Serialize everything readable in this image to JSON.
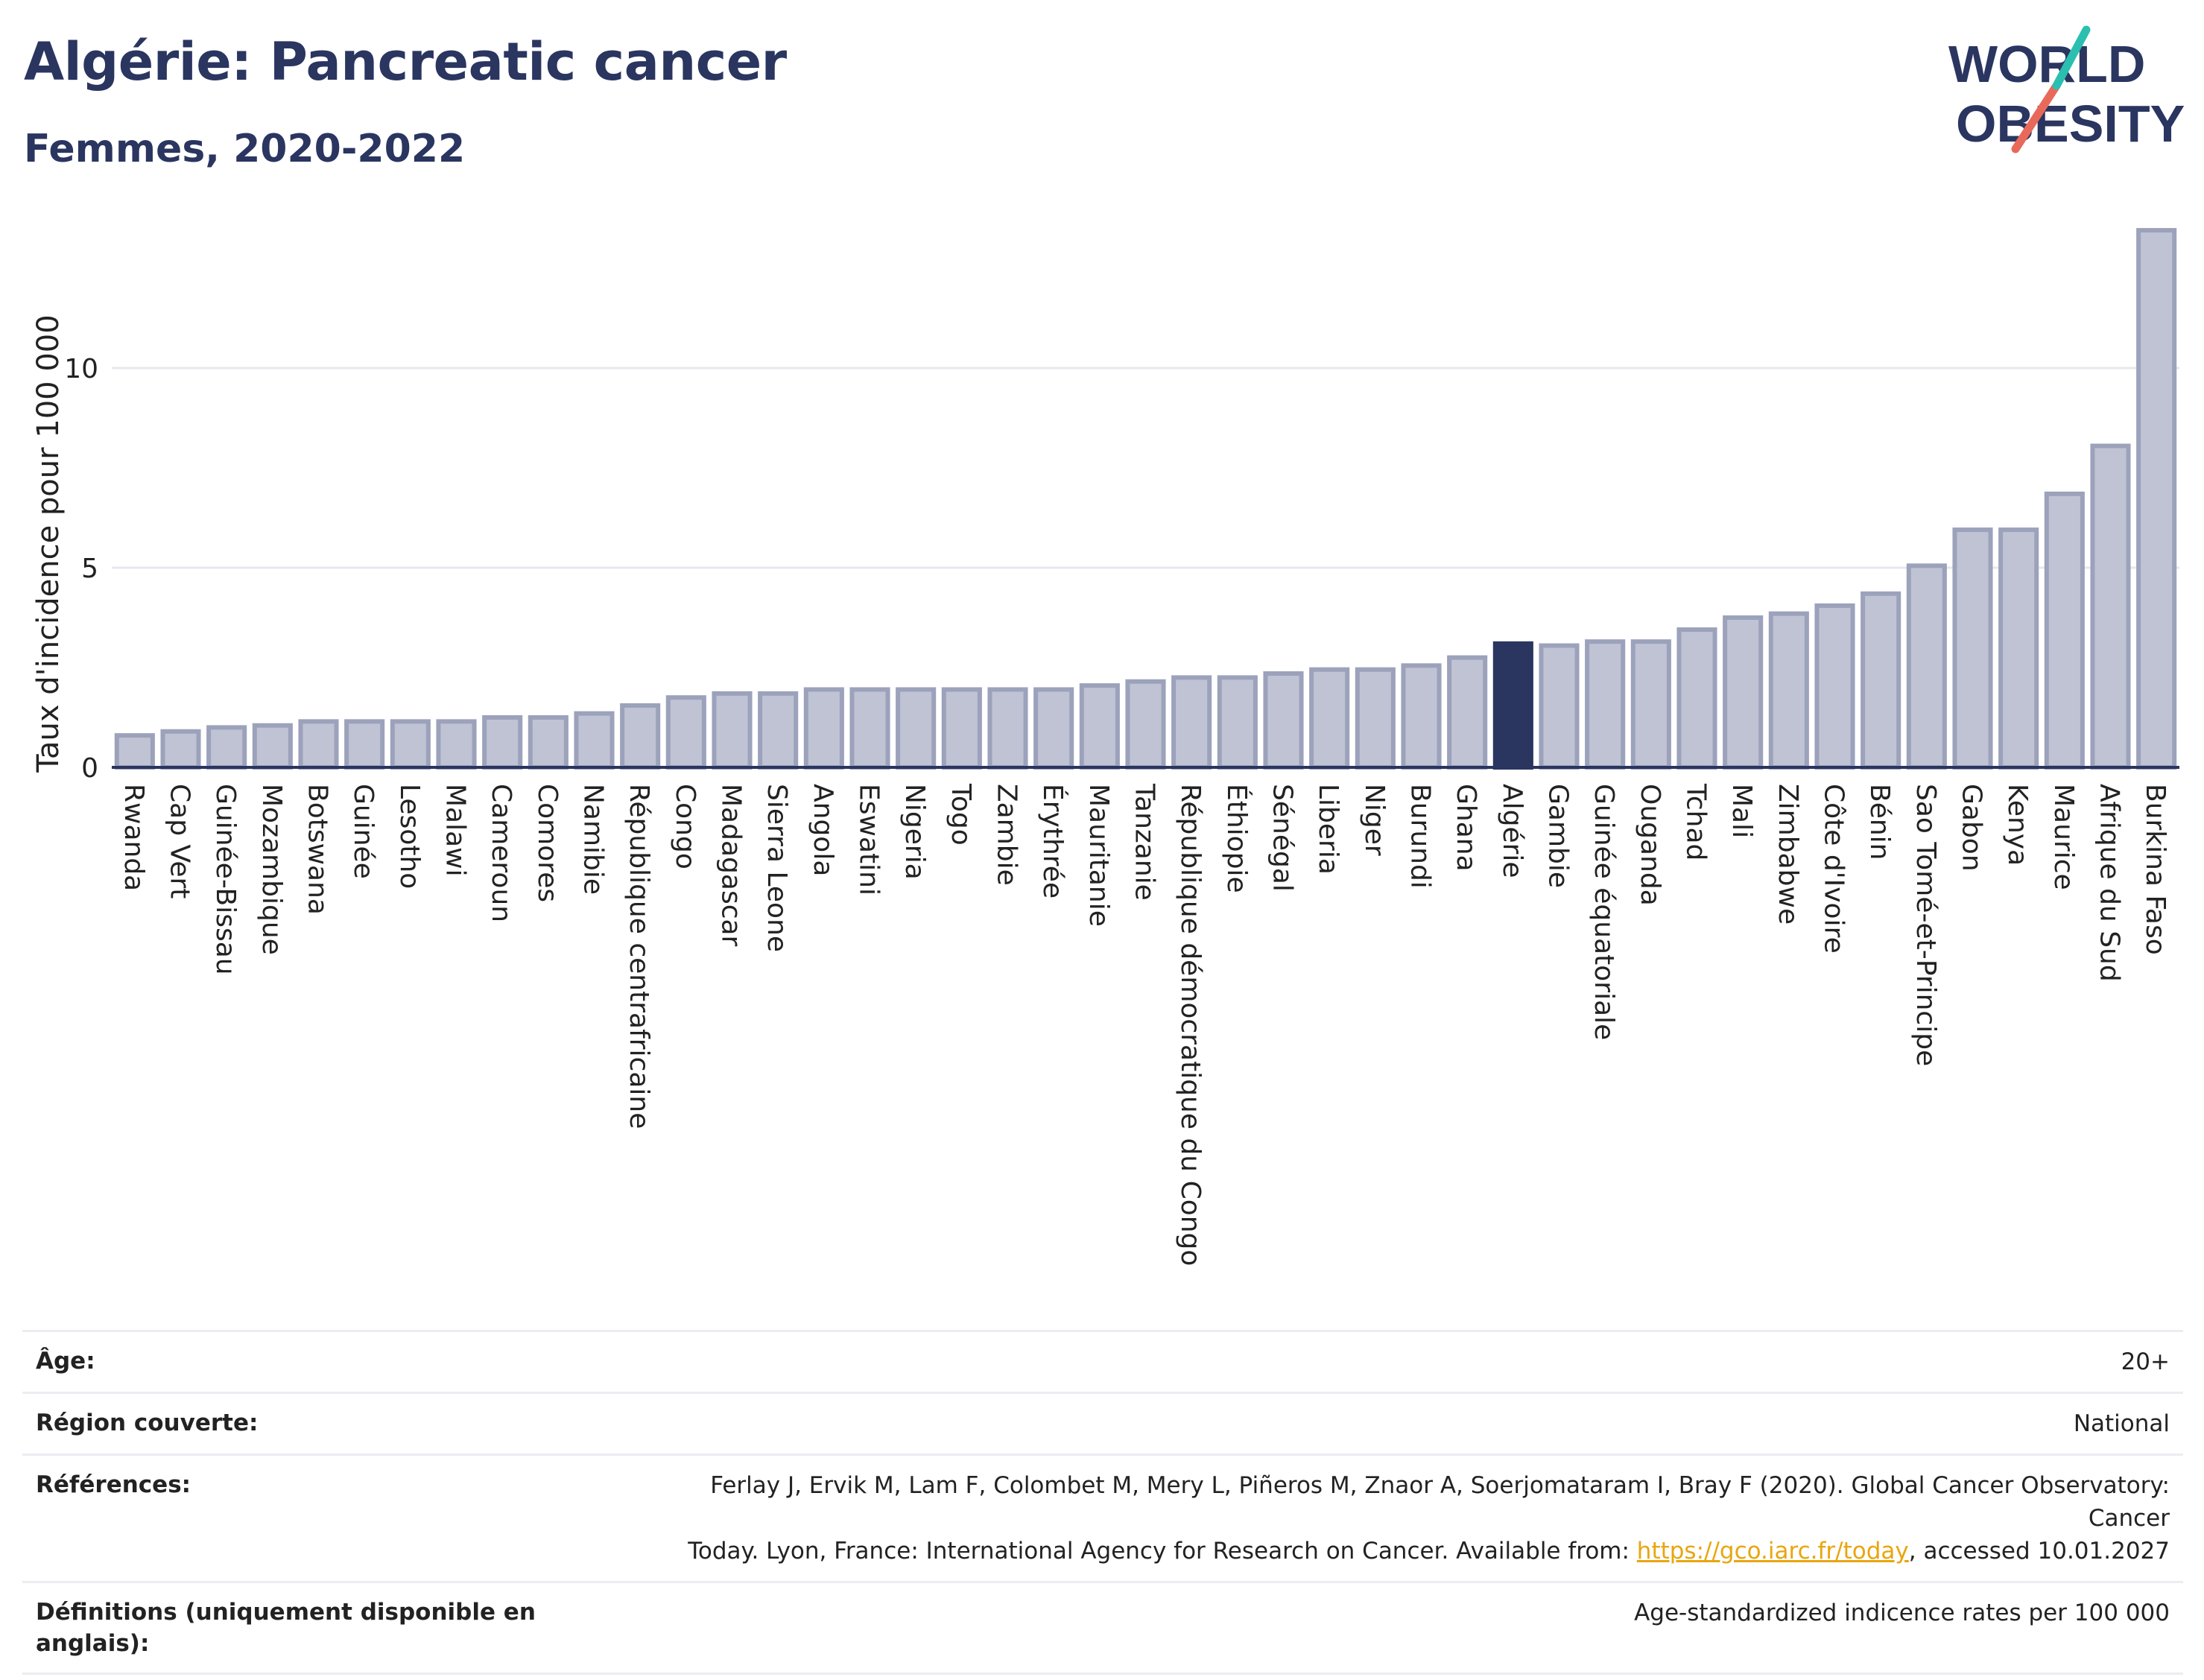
{
  "header": {
    "title": "Algérie: Pancreatic cancer",
    "subtitle": "Femmes, 2020-2022"
  },
  "logo": {
    "line1": "WORLD",
    "line2": "OBESITY"
  },
  "colors": {
    "bar_fill": "#bfc3d3",
    "bar_stroke": "#9ca2bb",
    "highlight": "#2a3560",
    "title": "#2a3560",
    "grid": "#e6e8ee",
    "axis": "#2a3560",
    "link": "#e8a60f",
    "logo_teal": "#2bbfb0",
    "logo_red": "#e8695a"
  },
  "chart_data": {
    "type": "bar",
    "ylabel": "Taux d'incidence pour 100 000",
    "ylim": [
      0,
      13.5
    ],
    "yticks": [
      0,
      5,
      10
    ],
    "grid": true,
    "highlight": "Algérie",
    "categories": [
      "Rwanda",
      "Cap Vert",
      "Guinée-Bissau",
      "Mozambique",
      "Botswana",
      "Guinée",
      "Lesotho",
      "Malawi",
      "Cameroun",
      "Comores",
      "Namibie",
      "République centrafricaine",
      "Congo",
      "Madagascar",
      "Sierra Leone",
      "Angola",
      "Eswatini",
      "Nigeria",
      "Togo",
      "Zambie",
      "Érythrée",
      "Mauritanie",
      "Tanzanie",
      "République démocratique du Congo",
      "Éthiopie",
      "Sénégal",
      "Liberia",
      "Niger",
      "Burundi",
      "Ghana",
      "Algérie",
      "Gambie",
      "Guinée équatoriale",
      "Ouganda",
      "Tchad",
      "Mali",
      "Zimbabwe",
      "Côte d'Ivoire",
      "Bénin",
      "Sao Tomé-et-Principe",
      "Gabon",
      "Kenya",
      "Maurice",
      "Afrique du Sud",
      "Burkina Faso"
    ],
    "values": [
      0.8,
      0.9,
      1.0,
      1.05,
      1.15,
      1.15,
      1.15,
      1.15,
      1.25,
      1.25,
      1.35,
      1.55,
      1.75,
      1.85,
      1.85,
      1.95,
      1.95,
      1.95,
      1.95,
      1.95,
      1.95,
      2.05,
      2.15,
      2.25,
      2.25,
      2.35,
      2.45,
      2.45,
      2.55,
      2.75,
      3.1,
      3.05,
      3.15,
      3.15,
      3.45,
      3.75,
      3.85,
      4.05,
      4.35,
      5.05,
      5.95,
      5.95,
      6.85,
      8.05,
      13.45
    ]
  },
  "info": {
    "age_label": "Âge:",
    "age_value": "20+",
    "region_label": "Région couverte:",
    "region_value": "National",
    "refs_label": "Références:",
    "refs_line1": "Ferlay J, Ervik M, Lam F, Colombet M, Mery L, Piñeros M, Znaor A, Soerjomataram I, Bray F (2020). Global Cancer Observatory: Cancer",
    "refs_line2_pre": "Today. Lyon, France: International Agency for Research on Cancer. Available from: ",
    "refs_link": "https://gco.iarc.fr/today",
    "refs_line2_post": ", accessed 10.01.2027",
    "defs_label": "Définitions (uniquement disponible en anglais):",
    "defs_value": "Age-standardized indicence rates per 100 000"
  }
}
